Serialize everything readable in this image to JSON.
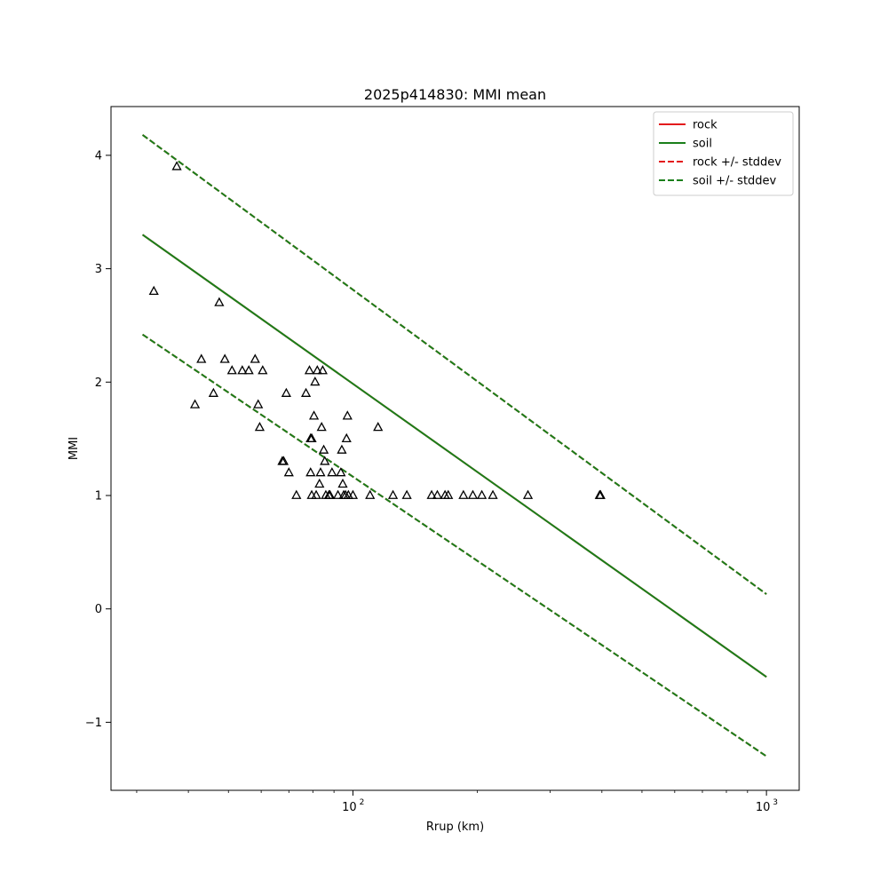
{
  "chart_data": {
    "type": "scatter",
    "title": "2025p414830: MMI mean",
    "xlabel": "Rrup (km)",
    "ylabel": "MMI",
    "xscale": "log",
    "xlim": [
      26,
      1200
    ],
    "ylim": [
      -1.6,
      4.43
    ],
    "x_ticks": [
      {
        "value": 100,
        "base": "10",
        "exp": "2"
      },
      {
        "value": 1000,
        "base": "10",
        "exp": "3"
      }
    ],
    "y_ticks": [
      {
        "value": -1,
        "label": "−1"
      },
      {
        "value": 0,
        "label": "0"
      },
      {
        "value": 1,
        "label": "1"
      },
      {
        "value": 2,
        "label": "2"
      },
      {
        "value": 3,
        "label": "3"
      },
      {
        "value": 4,
        "label": "4"
      }
    ],
    "grid": false,
    "legend_position": "top-right",
    "series": [
      {
        "name": "rock",
        "kind": "line",
        "style": "solid",
        "color": "#e31a1c",
        "x": [
          31,
          1000
        ],
        "y": [
          3.3,
          -0.6
        ]
      },
      {
        "name": "soil",
        "kind": "line",
        "style": "solid",
        "color": "#1a7f1a",
        "x": [
          31,
          1000
        ],
        "y": [
          3.3,
          -0.6
        ]
      },
      {
        "name": "rock +/- stddev",
        "kind": "band",
        "style": "dashed",
        "color": "#e31a1c",
        "x": [
          31,
          1000
        ],
        "upper": [
          4.18,
          0.13
        ],
        "lower": [
          2.42,
          -1.3
        ]
      },
      {
        "name": "soil +/- stddev",
        "kind": "band",
        "style": "dashed",
        "color": "#1a7f1a",
        "x": [
          31,
          1000
        ],
        "upper": [
          4.18,
          0.13
        ],
        "lower": [
          2.42,
          -1.3
        ]
      }
    ],
    "observations": {
      "marker": "triangle",
      "color": "#000000",
      "points": [
        [
          33,
          2.8
        ],
        [
          37.5,
          3.9
        ],
        [
          41.5,
          1.8
        ],
        [
          43.0,
          2.2
        ],
        [
          46.0,
          1.9
        ],
        [
          47.5,
          2.7
        ],
        [
          49.0,
          2.2
        ],
        [
          51.0,
          2.1
        ],
        [
          54.0,
          2.1
        ],
        [
          56.0,
          2.1
        ],
        [
          58.0,
          2.2
        ],
        [
          59.0,
          1.8
        ],
        [
          59.5,
          1.6
        ],
        [
          60.5,
          2.1
        ],
        [
          67.5,
          1.3
        ],
        [
          68.0,
          1.3
        ],
        [
          69.0,
          1.9
        ],
        [
          70.0,
          1.2
        ],
        [
          73.0,
          1.0
        ],
        [
          77.0,
          1.9
        ],
        [
          78.5,
          2.1
        ],
        [
          79.0,
          1.5
        ],
        [
          79.0,
          1.2
        ],
        [
          79.5,
          1.0
        ],
        [
          79.5,
          1.5
        ],
        [
          80.5,
          1.7
        ],
        [
          81.0,
          2.0
        ],
        [
          81.5,
          1.0
        ],
        [
          82.0,
          2.1
        ],
        [
          83.0,
          1.1
        ],
        [
          83.5,
          1.2
        ],
        [
          84.0,
          1.6
        ],
        [
          84.5,
          2.1
        ],
        [
          85.0,
          1.4
        ],
        [
          85.5,
          1.3
        ],
        [
          86.0,
          1.0
        ],
        [
          87.5,
          1.0
        ],
        [
          88.0,
          1.0
        ],
        [
          89.0,
          1.2
        ],
        [
          92.0,
          1.0
        ],
        [
          93.5,
          1.2
        ],
        [
          94.0,
          1.4
        ],
        [
          94.5,
          1.1
        ],
        [
          95.0,
          1.0
        ],
        [
          96.0,
          1.0
        ],
        [
          96.5,
          1.5
        ],
        [
          97.0,
          1.7
        ],
        [
          97.5,
          1.0
        ],
        [
          100.0,
          1.0
        ],
        [
          110.0,
          1.0
        ],
        [
          115.0,
          1.6
        ],
        [
          125.0,
          1.0
        ],
        [
          135.0,
          1.0
        ],
        [
          155.0,
          1.0
        ],
        [
          160.0,
          1.0
        ],
        [
          167.0,
          1.0
        ],
        [
          170.0,
          1.0
        ],
        [
          185.0,
          1.0
        ],
        [
          195.0,
          1.0
        ],
        [
          205.0,
          1.0
        ],
        [
          218.0,
          1.0
        ],
        [
          265.0,
          1.0
        ],
        [
          395.0,
          1.0
        ],
        [
          397.0,
          1.0
        ]
      ]
    }
  }
}
